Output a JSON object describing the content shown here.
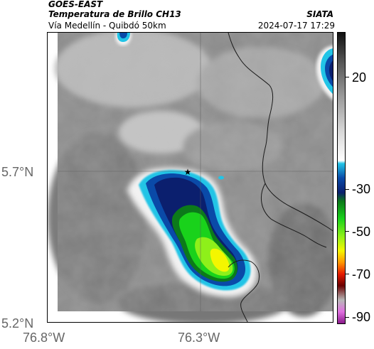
{
  "header": {
    "satellite": "GOES-EAST",
    "product": "Temperatura de Brillo CH13",
    "agency": "SIATA",
    "location": "Vía Medellín - Quibdó 50km",
    "datetime": "2024-07-17 17:29"
  },
  "axes": {
    "lat_labels": [
      "5.7°N",
      "5.2°N"
    ],
    "lon_labels": [
      "76.8°W",
      "76.3°W"
    ]
  },
  "colorbar": {
    "ticks": [
      "20",
      "-30",
      "-50",
      "-70",
      "-90"
    ],
    "colors": [
      "#111111",
      "#555555",
      "#9a9a9a",
      "#d8d8d8",
      "#ffffff",
      "#22c4e6",
      "#0a4aa8",
      "#0b1f6e",
      "#0c7a1a",
      "#19d21b",
      "#8ef01a",
      "#f4f600",
      "#ff9800",
      "#e61a00",
      "#6a0000",
      "#b9b9b9",
      "#e070e0",
      "#8b1a8b"
    ]
  },
  "map": {
    "marker": "star",
    "marker_icon": "star-icon"
  }
}
